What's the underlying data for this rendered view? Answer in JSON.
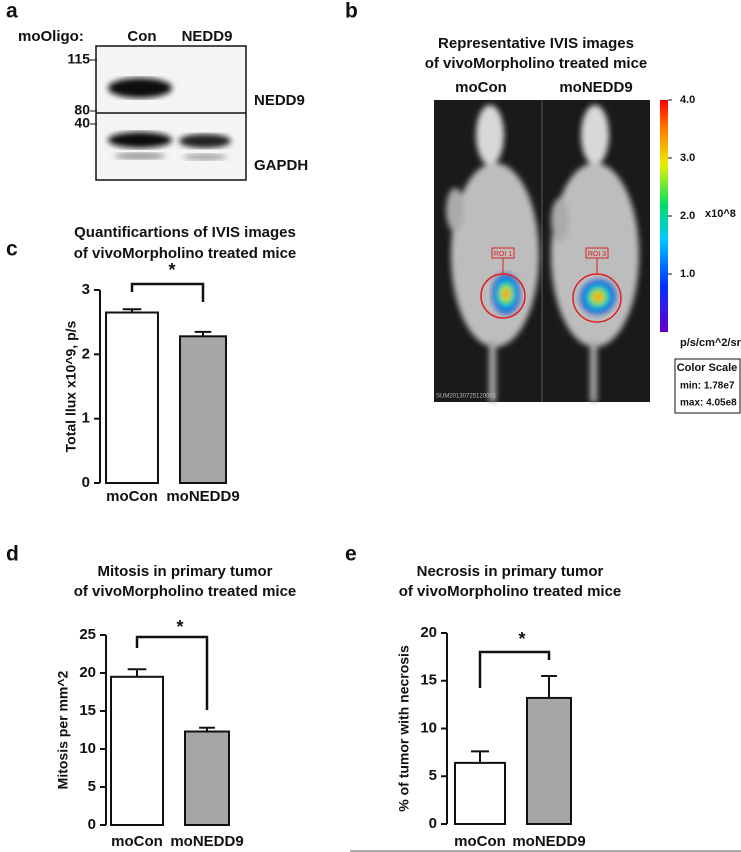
{
  "panel_a": {
    "letter": "a",
    "row_label": "moOligo:",
    "lanes": [
      "Con",
      "NEDD9"
    ],
    "markers": [
      "115",
      "80",
      "40"
    ],
    "bands": [
      "NEDD9",
      "GAPDH"
    ]
  },
  "panel_b": {
    "letter": "b",
    "title": [
      "Representative IVIS images",
      "of vivoMorpholino treated mice"
    ],
    "groups": [
      "moCon",
      "moNEDD9"
    ],
    "rois": [
      "ROI 1",
      "ROI 3"
    ],
    "image_stamp": "SUM20130725120001",
    "colorbar": {
      "ticks": [
        {
          "value": 4,
          "label": "4.0"
        },
        {
          "value": 3,
          "label": "3.0"
        },
        {
          "value": 2,
          "label": "2.0"
        },
        {
          "value": 1,
          "label": "1.0"
        }
      ],
      "lim": [
        0,
        4
      ],
      "multiplier": "x10^8",
      "unit": "p/s/cm^2/sr"
    },
    "scale_box": [
      "Color Scale",
      "min: 1.78e7",
      "max: 4.05e8"
    ]
  },
  "chart_data": [
    {
      "type": "bar",
      "panel_label": "c",
      "title": [
        "Quantificartions of IVIS images",
        "of vivoMorpholino treated mice"
      ],
      "y_label": "Total llux x10^9, p/s",
      "categories": [
        "moCon",
        "moNEDD9"
      ],
      "values": [
        2.65,
        2.28
      ],
      "errors": [
        0.05,
        0.07
      ],
      "colors": [
        "#ffffff",
        "#a6a6a6"
      ],
      "ylim": [
        0,
        3
      ],
      "yticks": [
        0,
        1,
        2,
        3
      ],
      "significance": "*"
    },
    {
      "type": "bar",
      "panel_label": "d",
      "title": [
        "Mitosis in primary tumor",
        "of vivoMorpholino treated mice"
      ],
      "y_label": "Mitosis per mm^2",
      "categories": [
        "moCon",
        "moNEDD9"
      ],
      "values": [
        19.5,
        12.3
      ],
      "errors": [
        1.0,
        0.5
      ],
      "colors": [
        "#ffffff",
        "#a6a6a6"
      ],
      "ylim": [
        0,
        25
      ],
      "yticks": [
        0,
        5,
        10,
        15,
        20,
        25
      ],
      "significance": "*"
    },
    {
      "type": "bar",
      "panel_label": "e",
      "title": [
        "Necrosis in primary tumor",
        "of vivoMorpholino treated mice"
      ],
      "y_label": "% of tumor with necrosis",
      "categories": [
        "moCon",
        "moNEDD9"
      ],
      "values": [
        6.4,
        13.2
      ],
      "errors": [
        1.2,
        2.3
      ],
      "colors": [
        "#ffffff",
        "#a6a6a6"
      ],
      "ylim": [
        0,
        20
      ],
      "yticks": [
        0,
        5,
        10,
        15,
        20
      ],
      "significance": "*"
    }
  ]
}
